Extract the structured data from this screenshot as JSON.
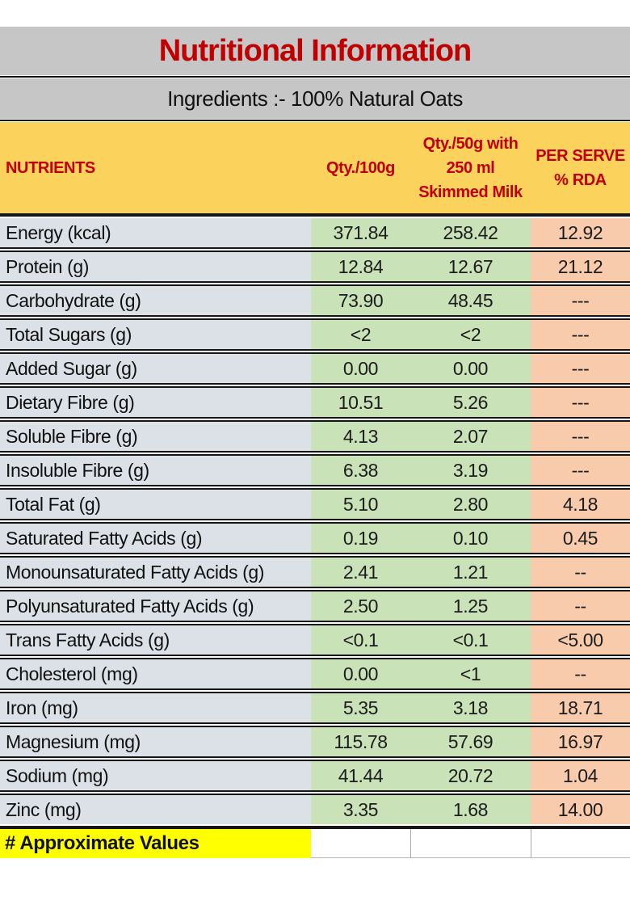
{
  "title": "Nutritional Information",
  "ingredients": "Ingredients :- 100% Natural Oats",
  "table": {
    "columns": {
      "nutrients": "NUTRIENTS",
      "qty_100g": "Qty./100g",
      "qty_50g_line1": "Qty./50g with",
      "qty_50g_line2": "250 ml",
      "qty_50g_line3": "Skimmed Milk",
      "per_serve_line1": "PER SERVE",
      "per_serve_line2": "% RDA"
    },
    "rows": [
      {
        "nutrient": "Energy (kcal)",
        "qty_100g": "371.84",
        "qty_50g": "258.42",
        "per_serve_rda": "12.92"
      },
      {
        "nutrient": "Protein (g)",
        "qty_100g": "12.84",
        "qty_50g": "12.67",
        "per_serve_rda": "21.12"
      },
      {
        "nutrient": "Carbohydrate (g)",
        "qty_100g": "73.90",
        "qty_50g": "48.45",
        "per_serve_rda": "---"
      },
      {
        "nutrient": "Total Sugars (g)",
        "qty_100g": "<2",
        "qty_50g": "<2",
        "per_serve_rda": "---"
      },
      {
        "nutrient": "Added Sugar (g)",
        "qty_100g": "0.00",
        "qty_50g": "0.00",
        "per_serve_rda": "---"
      },
      {
        "nutrient": "Dietary Fibre (g)",
        "qty_100g": "10.51",
        "qty_50g": "5.26",
        "per_serve_rda": "---"
      },
      {
        "nutrient": "Soluble Fibre (g)",
        "qty_100g": "4.13",
        "qty_50g": "2.07",
        "per_serve_rda": "---"
      },
      {
        "nutrient": "Insoluble Fibre (g)",
        "qty_100g": "6.38",
        "qty_50g": "3.19",
        "per_serve_rda": "---"
      },
      {
        "nutrient": "Total Fat (g)",
        "qty_100g": "5.10",
        "qty_50g": "2.80",
        "per_serve_rda": "4.18"
      },
      {
        "nutrient": "Saturated Fatty Acids (g)",
        "qty_100g": "0.19",
        "qty_50g": "0.10",
        "per_serve_rda": "0.45"
      },
      {
        "nutrient": "Monounsaturated Fatty Acids (g)",
        "qty_100g": "2.41",
        "qty_50g": "1.21",
        "per_serve_rda": "--"
      },
      {
        "nutrient": "Polyunsaturated Fatty Acids (g)",
        "qty_100g": "2.50",
        "qty_50g": "1.25",
        "per_serve_rda": "--"
      },
      {
        "nutrient": "Trans Fatty Acids (g)",
        "qty_100g": "<0.1",
        "qty_50g": "<0.1",
        "per_serve_rda": "<5.00"
      },
      {
        "nutrient": "Cholesterol (mg)",
        "qty_100g": "0.00",
        "qty_50g": "<1",
        "per_serve_rda": "--"
      },
      {
        "nutrient": "Iron (mg)",
        "qty_100g": "5.35",
        "qty_50g": "3.18",
        "per_serve_rda": "18.71"
      },
      {
        "nutrient": "Magnesium (mg)",
        "qty_100g": "115.78",
        "qty_50g": "57.69",
        "per_serve_rda": "16.97"
      },
      {
        "nutrient": "Sodium (mg)",
        "qty_100g": "41.44",
        "qty_50g": "20.72",
        "per_serve_rda": "1.04"
      },
      {
        "nutrient": "Zinc (mg)",
        "qty_100g": "3.35",
        "qty_50g": "1.68",
        "per_serve_rda": "14.00"
      }
    ]
  },
  "footer": {
    "note": "# Approximate Values"
  },
  "colors": {
    "title_red": "#C00000",
    "band_gray": "#C6C6C6",
    "header_yellow": "#FBD35C",
    "nutrient_col_bg": "#DCE1E8",
    "qty_col_bg": "#C9E2B7",
    "rda_col_bg": "#F8CBAD",
    "note_yellow": "#FFFF00"
  }
}
